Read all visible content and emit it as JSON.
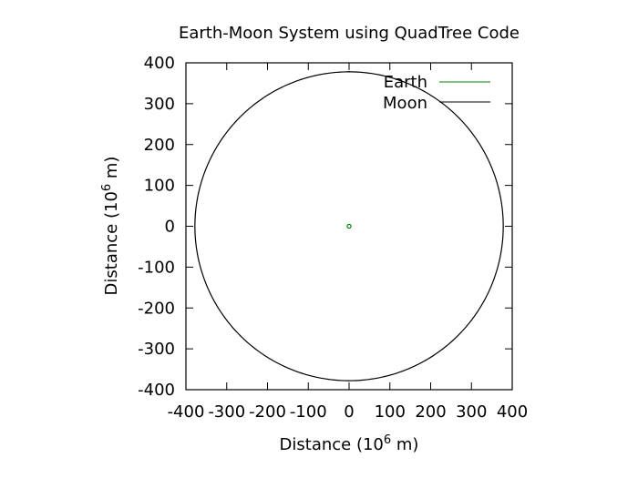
{
  "chart_data": {
    "type": "line",
    "title": "Earth-Moon System using QuadTree Code",
    "xlabel_base": "Distance (10",
    "xlabel_exp": "6",
    "xlabel_tail": " m)",
    "ylabel_base": "Distance (10",
    "ylabel_exp": "6",
    "ylabel_tail": " m)",
    "xlim": [
      -400,
      400
    ],
    "ylim": [
      -400,
      400
    ],
    "xticks": [
      -400,
      -300,
      -200,
      -100,
      0,
      100,
      200,
      300,
      400
    ],
    "yticks": [
      -400,
      -300,
      -200,
      -100,
      0,
      100,
      200,
      300,
      400
    ],
    "xtick_labels": [
      "-400",
      "-300",
      "-200",
      "-100",
      "0",
      "100",
      "200",
      "300",
      "400"
    ],
    "ytick_labels": [
      "-400",
      "-300",
      "-200",
      "-100",
      "0",
      "100",
      "200",
      "300",
      "400"
    ],
    "grid": false,
    "legend_position": "top-right",
    "series": [
      {
        "name": "Earth",
        "color": "#008000",
        "shape": "small circle orbit near origin",
        "center": [
          0,
          0
        ],
        "radius": 4.7
      },
      {
        "name": "Moon",
        "color": "#000000",
        "shape": "circular orbit",
        "center": [
          0,
          0
        ],
        "radius": 378,
        "start_point": [
          0,
          380
        ],
        "end_point": [
          50,
          376
        ],
        "gap_between": [
          [
            0,
            380
          ],
          [
            50,
            376
          ]
        ]
      }
    ]
  }
}
